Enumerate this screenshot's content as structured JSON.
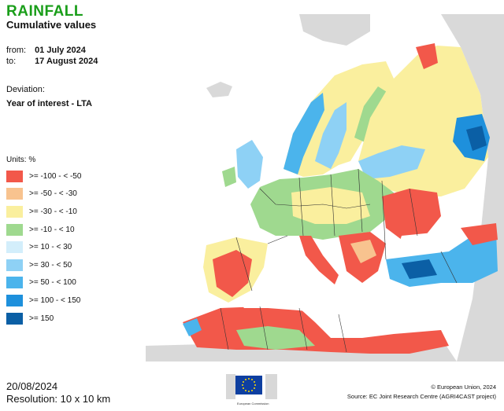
{
  "header": {
    "title": "RAINFALL",
    "subtitle": "Cumulative values",
    "title_color": "#1a9e1a"
  },
  "period": {
    "from_label": "from:",
    "from_value": "01 July 2024",
    "to_label": "to:",
    "to_value": "17 August 2024"
  },
  "deviation": {
    "label": "Deviation:",
    "value": "Year of interest - LTA"
  },
  "legend": {
    "units": "Units: %",
    "items": [
      {
        "label": ">= -100 - < -50",
        "color": "#f2584a"
      },
      {
        "label": ">= -50 - < -30",
        "color": "#f8c38f"
      },
      {
        "label": ">= -30 - < -10",
        "color": "#faef9e"
      },
      {
        "label": ">= -10 - < 10",
        "color": "#9fd98f"
      },
      {
        "label": ">= 10 - < 30",
        "color": "#d3eefb"
      },
      {
        "label": ">= 30 - < 50",
        "color": "#8ed1f5"
      },
      {
        "label": ">= 50 - < 100",
        "color": "#4bb4ec"
      },
      {
        "label": ">= 100 - < 150",
        "color": "#1e90dc"
      },
      {
        "label": ">= 150",
        "color": "#0b5fa5"
      }
    ]
  },
  "footer": {
    "date": "20/08/2024",
    "resolution": "Resolution: 10 x 10 km",
    "logo_text": "European Commission",
    "copyright": "© European Union, 2024",
    "source": "Source: EC Joint Research Centre (AGRI4CAST project)"
  },
  "map_colors": {
    "background_land": "#d9d9d9",
    "sea": "#ffffff",
    "borders": "#333333"
  }
}
